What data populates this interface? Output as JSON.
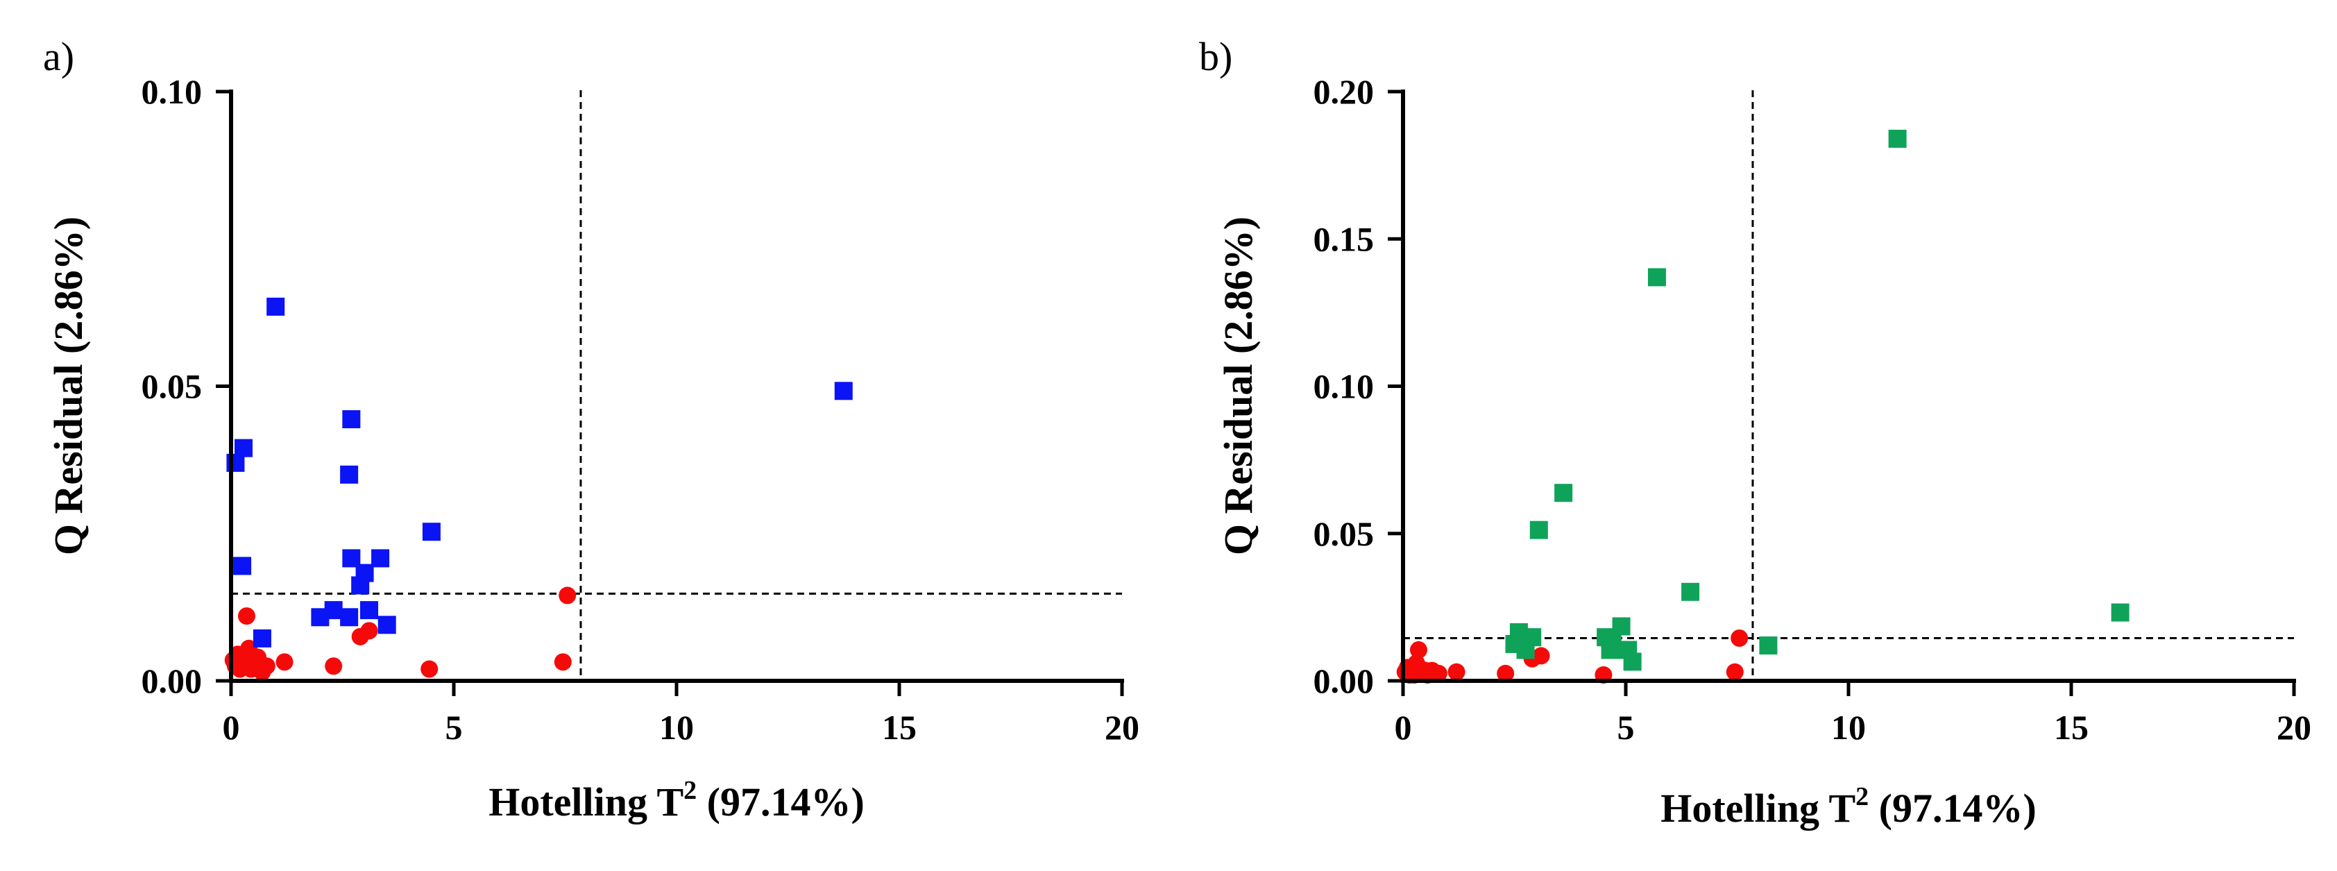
{
  "chart_data": [
    {
      "panel_label": "a)",
      "type": "scatter",
      "xlabel": "Hotelling T",
      "xlabel_sup": "2",
      "xlabel_suffix": " (97.14%)",
      "ylabel": "Q Residual (2.86%)",
      "xlim": [
        0,
        20
      ],
      "ylim": [
        0,
        0.1
      ],
      "x_ticks": [
        0,
        5,
        10,
        15,
        20
      ],
      "x_tick_labels": [
        "0",
        "5",
        "10",
        "15",
        "20"
      ],
      "y_ticks": [
        0,
        0.05,
        0.1
      ],
      "y_tick_labels": [
        "0.00",
        "0.05",
        "0.10"
      ],
      "thresholds": {
        "t2": 7.85,
        "q": 0.0148
      },
      "series": [
        {
          "name": "blue squares",
          "color": "#0a14f5",
          "marker": "square",
          "points": [
            [
              0.1,
              0.037
            ],
            [
              0.28,
              0.0395
            ],
            [
              0.25,
              0.0195
            ],
            [
              0.7,
              0.0072
            ],
            [
              1.0,
              0.0635
            ],
            [
              2.0,
              0.0108
            ],
            [
              2.3,
              0.012
            ],
            [
              2.65,
              0.0108
            ],
            [
              2.7,
              0.0444
            ],
            [
              2.65,
              0.035
            ],
            [
              2.7,
              0.0208
            ],
            [
              2.9,
              0.0162
            ],
            [
              3.0,
              0.0183
            ],
            [
              3.1,
              0.012
            ],
            [
              3.35,
              0.0208
            ],
            [
              3.5,
              0.0095
            ],
            [
              4.5,
              0.0253
            ],
            [
              13.75,
              0.0492
            ]
          ]
        },
        {
          "name": "red circles",
          "color": "#f50a0a",
          "marker": "circle",
          "points": [
            [
              0.05,
              0.0035
            ],
            [
              0.1,
              0.0025
            ],
            [
              0.15,
              0.0045
            ],
            [
              0.2,
              0.002
            ],
            [
              0.25,
              0.003
            ],
            [
              0.3,
              0.0045
            ],
            [
              0.35,
              0.011
            ],
            [
              0.4,
              0.0055
            ],
            [
              0.45,
              0.002
            ],
            [
              0.5,
              0.0035
            ],
            [
              0.55,
              0.0025
            ],
            [
              0.6,
              0.004
            ],
            [
              0.7,
              0.0015
            ],
            [
              0.8,
              0.0025
            ],
            [
              1.2,
              0.0032
            ],
            [
              2.3,
              0.0025
            ],
            [
              2.9,
              0.0075
            ],
            [
              3.1,
              0.0085
            ],
            [
              4.45,
              0.002
            ],
            [
              7.45,
              0.0032
            ],
            [
              7.55,
              0.0145
            ]
          ]
        }
      ]
    },
    {
      "panel_label": "b)",
      "type": "scatter",
      "xlabel": "Hotelling T",
      "xlabel_sup": "2",
      "xlabel_suffix": " (97.14%)",
      "ylabel": "Q Residual (2.86%)",
      "xlim": [
        0,
        20
      ],
      "ylim": [
        0,
        0.2
      ],
      "x_ticks": [
        0,
        5,
        10,
        15,
        20
      ],
      "x_tick_labels": [
        "0",
        "5",
        "10",
        "15",
        "20"
      ],
      "y_ticks": [
        0,
        0.05,
        0.1,
        0.15,
        0.2
      ],
      "y_tick_labels": [
        "0.00",
        "0.05",
        "0.10",
        "0.15",
        "0.20"
      ],
      "thresholds": {
        "t2": 7.85,
        "q": 0.0145
      },
      "series": [
        {
          "name": "green squares",
          "color": "#0fa35a",
          "marker": "square",
          "points": [
            [
              2.5,
              0.0125
            ],
            [
              2.6,
              0.0165
            ],
            [
              2.7,
              0.0148
            ],
            [
              2.75,
              0.0105
            ],
            [
              2.9,
              0.0148
            ],
            [
              3.05,
              0.0512
            ],
            [
              3.6,
              0.0638
            ],
            [
              4.55,
              0.0148
            ],
            [
              4.65,
              0.0105
            ],
            [
              4.7,
              0.0138
            ],
            [
              4.9,
              0.0185
            ],
            [
              5.05,
              0.0105
            ],
            [
              5.15,
              0.0065
            ],
            [
              5.7,
              0.137
            ],
            [
              6.45,
              0.0302
            ],
            [
              8.2,
              0.012
            ],
            [
              11.1,
              0.184
            ],
            [
              16.1,
              0.0232
            ]
          ]
        },
        {
          "name": "red circles",
          "color": "#f50a0a",
          "marker": "circle",
          "points": [
            [
              0.05,
              0.003
            ],
            [
              0.1,
              0.0045
            ],
            [
              0.15,
              0.002
            ],
            [
              0.2,
              0.0035
            ],
            [
              0.25,
              0.002
            ],
            [
              0.3,
              0.006
            ],
            [
              0.35,
              0.0105
            ],
            [
              0.4,
              0.004
            ],
            [
              0.45,
              0.0025
            ],
            [
              0.5,
              0.0035
            ],
            [
              0.55,
              0.002
            ],
            [
              0.65,
              0.0035
            ],
            [
              0.8,
              0.0025
            ],
            [
              1.2,
              0.003
            ],
            [
              2.3,
              0.0025
            ],
            [
              2.9,
              0.0075
            ],
            [
              3.1,
              0.0085
            ],
            [
              4.5,
              0.002
            ],
            [
              7.45,
              0.003
            ],
            [
              7.55,
              0.0145
            ]
          ]
        }
      ]
    }
  ]
}
